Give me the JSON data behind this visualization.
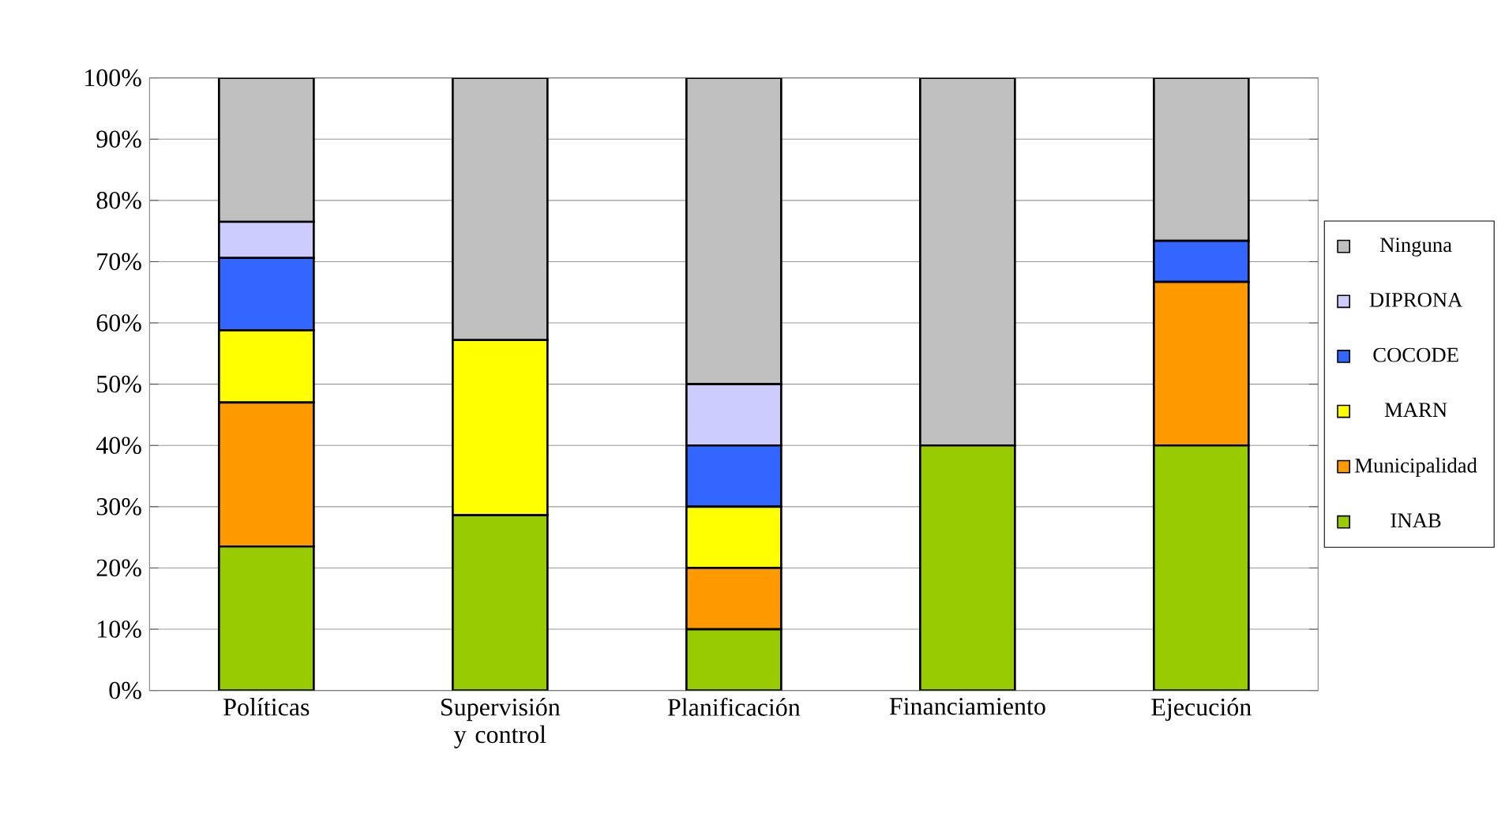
{
  "chart_data": {
    "type": "bar",
    "stacked": true,
    "categories": [
      "Políticas",
      "Supervisión y control",
      "Planificación",
      "Financiamiento",
      "Ejecución"
    ],
    "series": [
      {
        "name": "INAB",
        "color": "#99cc00",
        "values": [
          23.5,
          28.6,
          10,
          40,
          40
        ]
      },
      {
        "name": "Municipalidad",
        "color": "#ff9900",
        "values": [
          23.5,
          0,
          10,
          0,
          26.7
        ]
      },
      {
        "name": "MARN",
        "color": "#ffff00",
        "values": [
          11.8,
          28.6,
          10,
          0,
          0
        ]
      },
      {
        "name": "COCODE",
        "color": "#3366ff",
        "values": [
          11.8,
          0,
          10,
          0,
          6.7
        ]
      },
      {
        "name": "DIPRONA",
        "color": "#ccccff",
        "values": [
          5.9,
          0,
          10,
          0,
          0
        ]
      },
      {
        "name": "Ninguna",
        "color": "#c0c0c0",
        "values": [
          23.5,
          42.8,
          50,
          60,
          26.6
        ]
      }
    ],
    "ylim": [
      0,
      100
    ],
    "yticks": [
      {
        "value": 0,
        "label": "0%"
      },
      {
        "value": 10,
        "label": "10%"
      },
      {
        "value": 20,
        "label": "20%"
      },
      {
        "value": 30,
        "label": "30%"
      },
      {
        "value": 40,
        "label": "40%"
      },
      {
        "value": 50,
        "label": "50%"
      },
      {
        "value": 60,
        "label": "60%"
      },
      {
        "value": 70,
        "label": "70%"
      },
      {
        "value": 80,
        "label": "80%"
      },
      {
        "value": 90,
        "label": "90%"
      },
      {
        "value": 100,
        "label": "100%"
      }
    ],
    "grid": "y",
    "legend": "right"
  }
}
